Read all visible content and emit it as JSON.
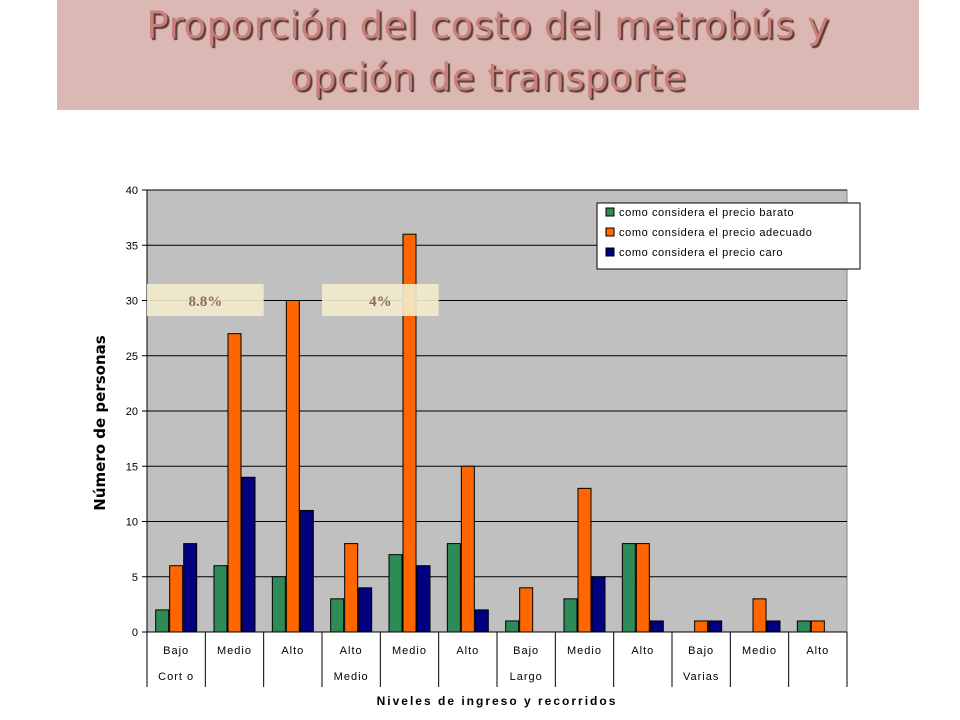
{
  "slide": {
    "title_line1": "Proporción del costo del metrobús y",
    "title_line2": "opción de transporte"
  },
  "chart_data": {
    "type": "bar",
    "ylabel": "Número de personas",
    "xlabel": "Niveles de ingreso y recorridos",
    "ylim": [
      0,
      40
    ],
    "yticks": [
      0,
      5,
      10,
      15,
      20,
      25,
      30,
      35,
      40
    ],
    "grid": true,
    "legend_position": "top-right",
    "categories": [
      "Bajo",
      "Medio",
      "Alto",
      "Alto",
      "Medio",
      "Alto",
      "Bajo",
      "Medio",
      "Alto",
      "Bajo",
      "Medio",
      "Alto"
    ],
    "groups": [
      {
        "label": "Cort o",
        "start": 0,
        "end": 0
      },
      {
        "label": "Medio",
        "start": 3,
        "end": 3
      },
      {
        "label": "Largo",
        "start": 6,
        "end": 6
      },
      {
        "label": "Varias",
        "start": 9,
        "end": 9
      }
    ],
    "series": [
      {
        "name": "como considera el precio barato",
        "color": "#2e8b57",
        "values": [
          2,
          6,
          5,
          3,
          7,
          8,
          1,
          3,
          8,
          0,
          0,
          1
        ]
      },
      {
        "name": "como considera el precio adecuado",
        "color": "#ff6600",
        "values": [
          6,
          27,
          30,
          8,
          36,
          15,
          4,
          13,
          8,
          1,
          3,
          1
        ]
      },
      {
        "name": "como considera el precio caro",
        "color": "#000080",
        "values": [
          8,
          14,
          11,
          4,
          6,
          2,
          0,
          5,
          1,
          1,
          1,
          0
        ]
      }
    ],
    "annotations": [
      {
        "text": "8.8%",
        "start": 0,
        "end": 1
      },
      {
        "text": "4%",
        "start": 3,
        "end": 4
      }
    ]
  }
}
